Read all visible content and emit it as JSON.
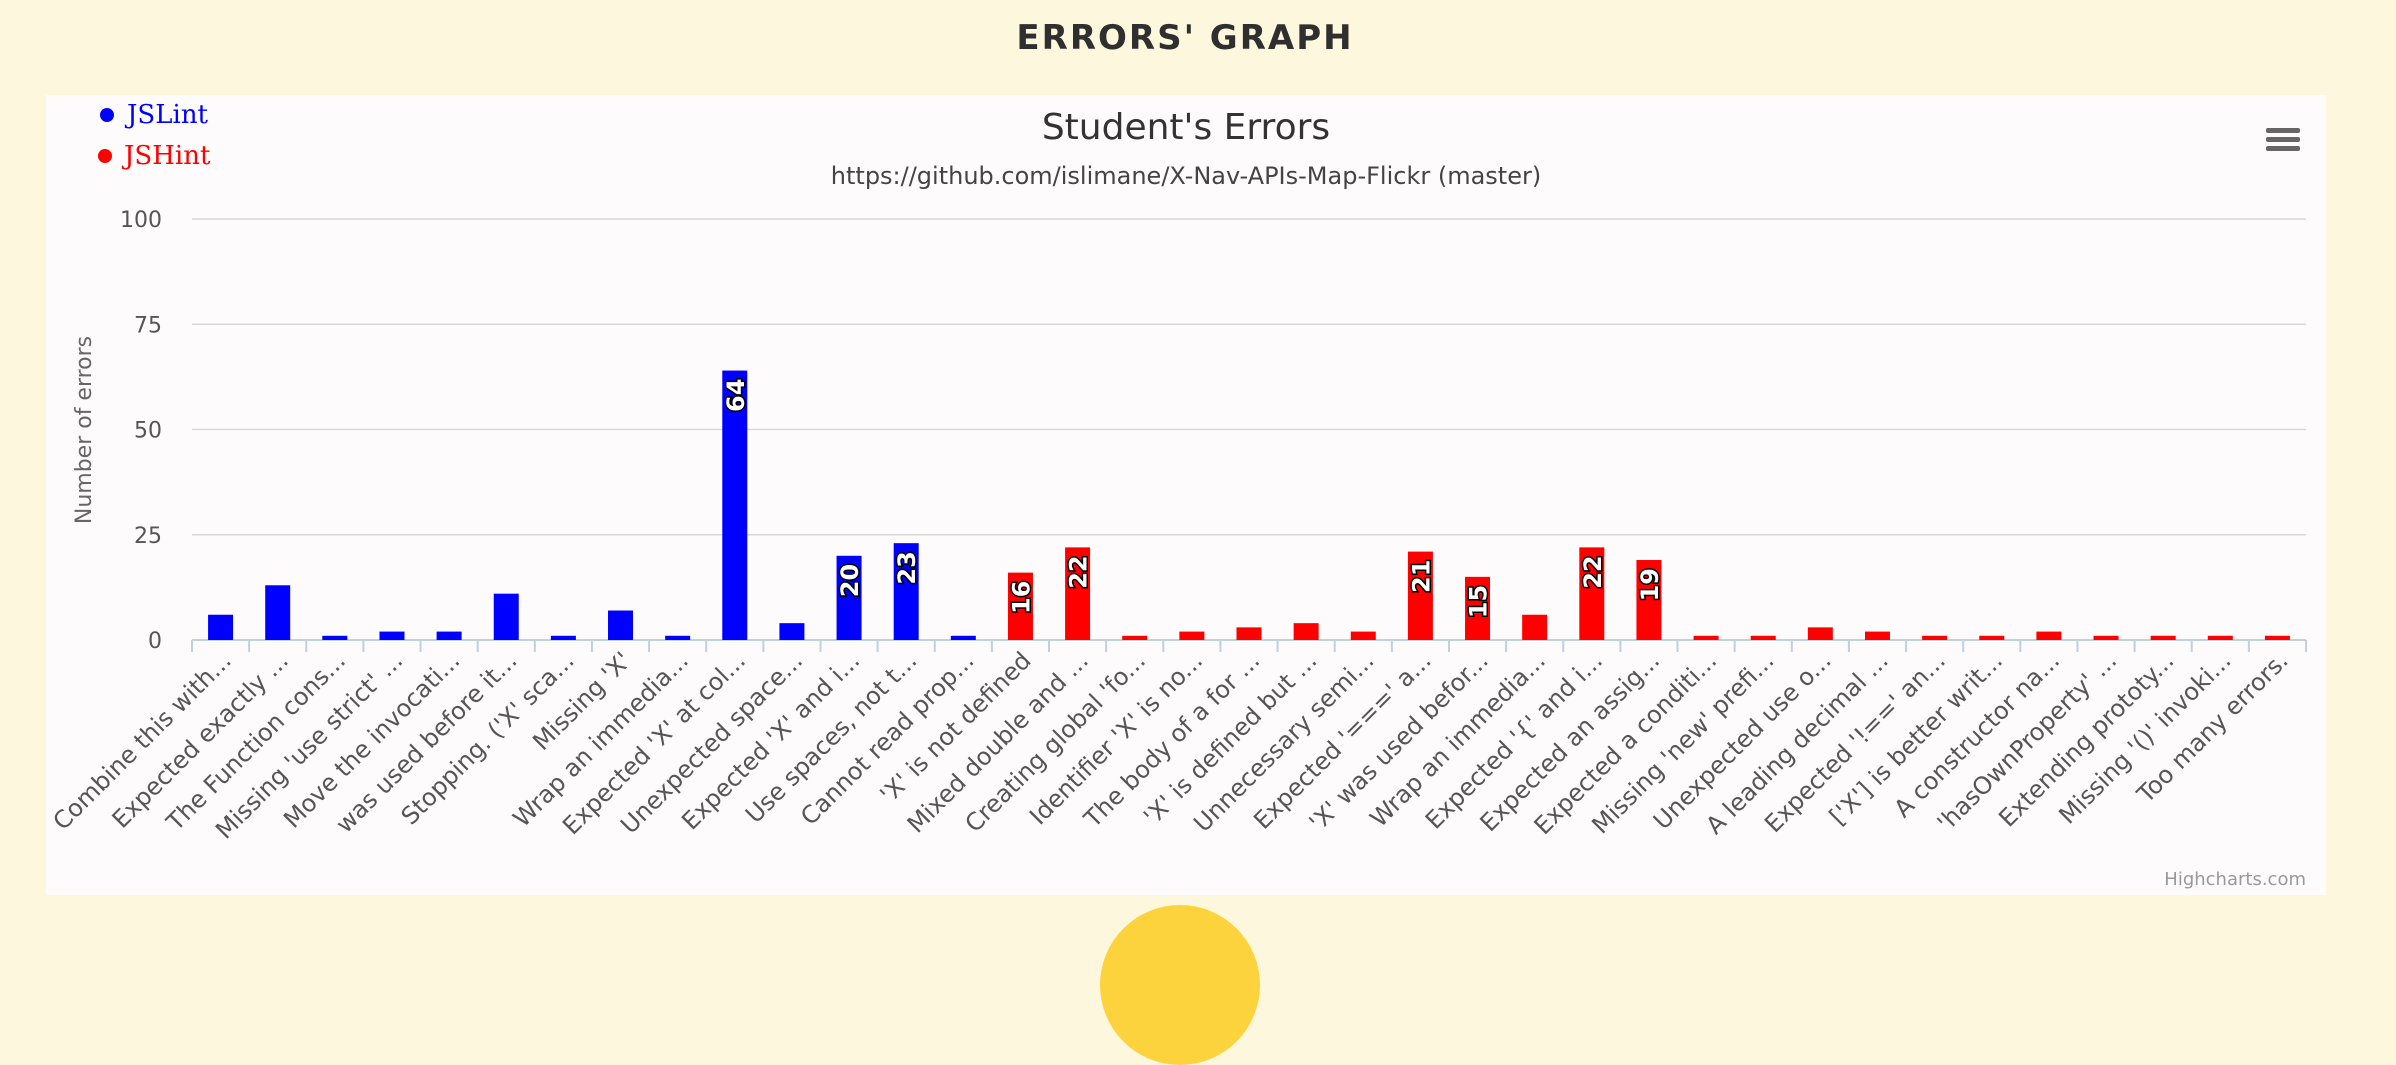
{
  "page": {
    "heading": "ERRORS' GRAPH"
  },
  "menu": {
    "icon": "hamburger-menu-icon"
  },
  "chart_data": {
    "type": "bar",
    "title": "Student's Errors",
    "subtitle": "https://github.com/islimane/X-Nav-APIs-Map-Flickr (master)",
    "ylabel": "Number of errors",
    "ylim": [
      0,
      100
    ],
    "yticks": [
      0,
      25,
      50,
      75,
      100
    ],
    "grid": true,
    "legend_position": "top-left",
    "credits": "Highcharts.com",
    "categories": [
      "Combine this with...",
      "Expected exactly ...",
      "The Function cons...",
      "Missing 'use strict' ...",
      "Move the invocati...",
      "was used before it...",
      "Stopping. ('X' sca...",
      "Missing 'X'",
      "Wrap an immedia...",
      "Expected 'X' at col...",
      "Unexpected space...",
      "Expected 'X' and i...",
      "Use spaces, not t...",
      "Cannot read prop...",
      "'X' is not defined",
      "Mixed double and ...",
      "Creating global 'fo...",
      "Identifier 'X' is no...",
      "The body of a for ...",
      "'X' is defined but ...",
      "Unnecessary semi...",
      "Expected '===' a...",
      "'X' was used befor...",
      "Wrap an immedia...",
      "Expected '{' and i...",
      "Expected an assig...",
      "Expected a conditi...",
      "Missing 'new' prefi...",
      "Unexpected use o...",
      "A leading decimal ...",
      "Expected '!==' an...",
      "['X'] is better writ...",
      "A constructor na...",
      "'hasOwnProperty' ...",
      "Extending prototy...",
      "Missing '()' invoki...",
      "Too many errors."
    ],
    "series": [
      {
        "name": "JSLint",
        "color": "#0000ff",
        "values": [
          6,
          13,
          1,
          2,
          2,
          11,
          1,
          7,
          1,
          64,
          4,
          20,
          23,
          1,
          null,
          null,
          null,
          null,
          null,
          null,
          null,
          null,
          null,
          null,
          null,
          null,
          null,
          null,
          null,
          null,
          null,
          null,
          null,
          null,
          null,
          null,
          null
        ]
      },
      {
        "name": "JSHint",
        "color": "#ff0000",
        "values": [
          null,
          null,
          null,
          null,
          null,
          null,
          null,
          null,
          null,
          null,
          null,
          null,
          null,
          null,
          16,
          22,
          1,
          2,
          3,
          4,
          2,
          21,
          15,
          6,
          22,
          19,
          1,
          1,
          3,
          2,
          1,
          1,
          2,
          1,
          1,
          1,
          1
        ]
      }
    ],
    "data_label_threshold": 15
  }
}
